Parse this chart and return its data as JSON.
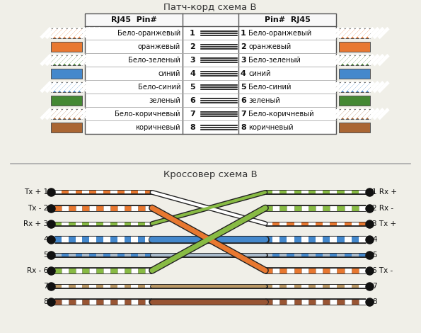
{
  "title1": "Патч-корд схема B",
  "title2": "Кроссовер схема B",
  "bg_color": "#f0efe8",
  "pins": [
    {
      "num": 1,
      "left_label": "Бело-оранжевый",
      "right_label": "Бело-оранжевый"
    },
    {
      "num": 2,
      "left_label": "оранжевый",
      "right_label": "оранжевый"
    },
    {
      "num": 3,
      "left_label": "Бело-зеленый",
      "right_label": "Бело-зеленый"
    },
    {
      "num": 4,
      "left_label": "синий",
      "right_label": "синий"
    },
    {
      "num": 5,
      "left_label": "Бело-синий",
      "right_label": "Бело-синий"
    },
    {
      "num": 6,
      "left_label": "зеленый",
      "right_label": "зеленый"
    },
    {
      "num": 7,
      "left_label": "Бело-коричневый",
      "right_label": "Бело-коричневый"
    },
    {
      "num": 8,
      "left_label": "коричневый",
      "right_label": "коричневый"
    }
  ],
  "wire_colors": [
    {
      "main": "#e87830",
      "alt": "#ffffff",
      "striped": true
    },
    {
      "main": "#e87830",
      "alt": null,
      "striped": false
    },
    {
      "main": "#448833",
      "alt": "#ffffff",
      "striped": true
    },
    {
      "main": "#4488cc",
      "alt": null,
      "striped": false
    },
    {
      "main": "#4488cc",
      "alt": "#ffffff",
      "striped": true
    },
    {
      "main": "#448833",
      "alt": null,
      "striped": false
    },
    {
      "main": "#aa6633",
      "alt": "#ffffff",
      "striped": true
    },
    {
      "main": "#aa6633",
      "alt": null,
      "striped": false
    }
  ],
  "cross_map": [
    2,
    5,
    0,
    3,
    4,
    1,
    6,
    7
  ],
  "left_labels": [
    "Tx + 1",
    "Tx - 2",
    "Rx + 3",
    "4",
    "5",
    "Rx - 6",
    "7",
    "8"
  ],
  "right_labels": [
    "1 Rx +",
    "2 Rx -",
    "3 Tx +",
    "4",
    "5",
    "6 Tx -",
    "7",
    "8"
  ],
  "cross_wire_colors": [
    {
      "main": "#ffffff",
      "stripe": "#e87830",
      "lw": 3
    },
    {
      "main": "#e87830",
      "stripe": "#ffffff",
      "lw": 5
    },
    {
      "main": "#88bb44",
      "stripe": "#ffffff",
      "lw": 3
    },
    {
      "main": "#4488cc",
      "stripe": "#ffffff",
      "lw": 6
    },
    {
      "main": "#aabbcc",
      "stripe": "#4488cc",
      "lw": 3
    },
    {
      "main": "#88bb44",
      "stripe": "#ffffff",
      "lw": 5
    },
    {
      "main": "#bb9966",
      "stripe": "#ffffff",
      "lw": 3
    },
    {
      "main": "#995533",
      "stripe": "#ffffff",
      "lw": 5
    }
  ]
}
